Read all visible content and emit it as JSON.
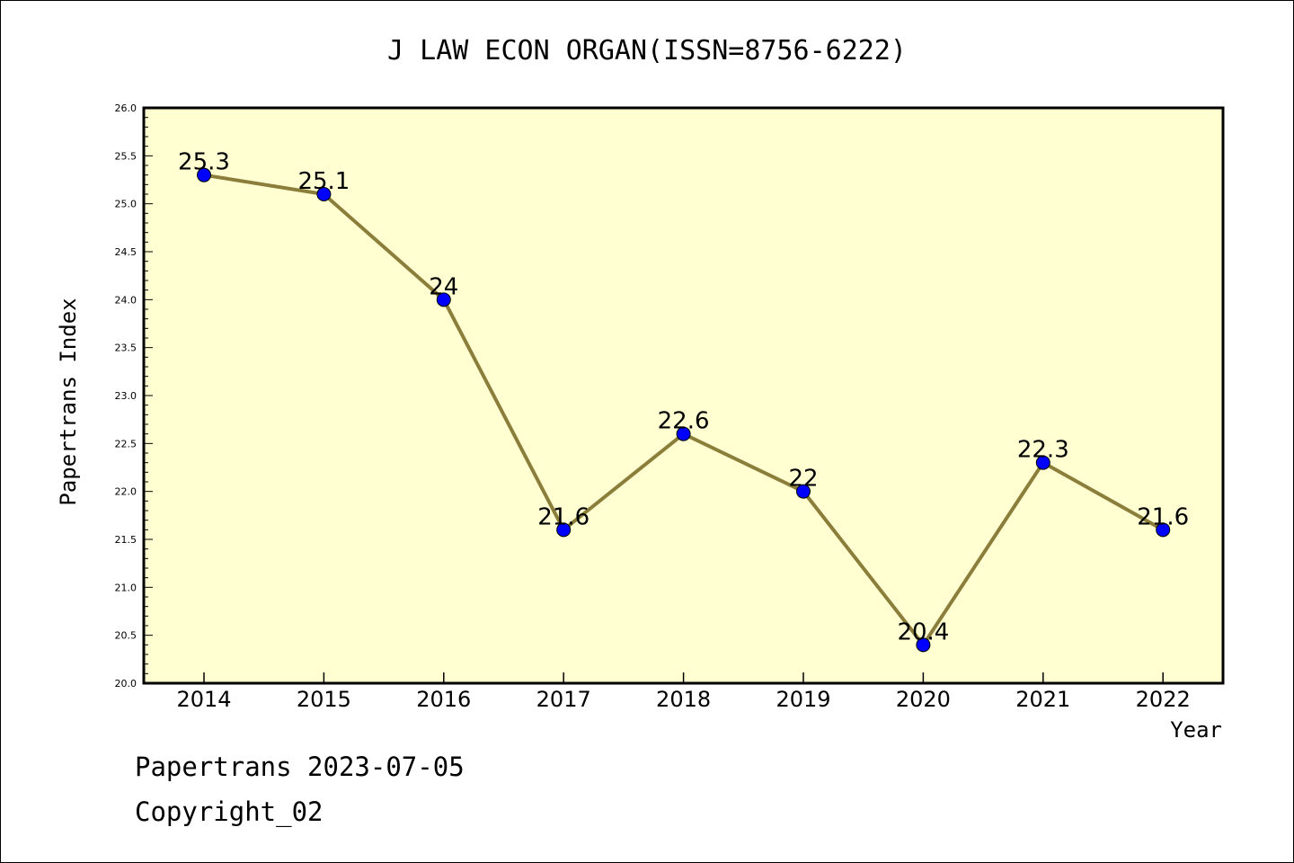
{
  "chart_data": {
    "type": "line",
    "title": "J LAW ECON ORGAN(ISSN=8756-6222)",
    "xlabel": "Year",
    "ylabel": "Papertrans Index",
    "x": [
      "2014",
      "2015",
      "2016",
      "2017",
      "2018",
      "2019",
      "2020",
      "2021",
      "2022"
    ],
    "series": [
      {
        "values": [
          25.3,
          25.1,
          24,
          21.6,
          22.6,
          22,
          20.4,
          22.3,
          21.6
        ],
        "labels": [
          "25.3",
          "25.1",
          "24",
          "21.6",
          "22.6",
          "22",
          "20.4",
          "22.3",
          "21.6"
        ]
      }
    ],
    "ylim": [
      20.0,
      26.0
    ],
    "yticks": [
      "20.0",
      "20.5",
      "21.0",
      "21.5",
      "22.0",
      "22.5",
      "23.0",
      "23.5",
      "24.0",
      "24.5",
      "25.0",
      "25.5",
      "26.0"
    ],
    "grid": false,
    "line_color": "#8b7d3a",
    "marker_color": "#0000ff",
    "plot_background": "#ffffd2"
  },
  "footer": {
    "line1": "Papertrans 2023-07-05",
    "line2": "Copyright_02"
  }
}
